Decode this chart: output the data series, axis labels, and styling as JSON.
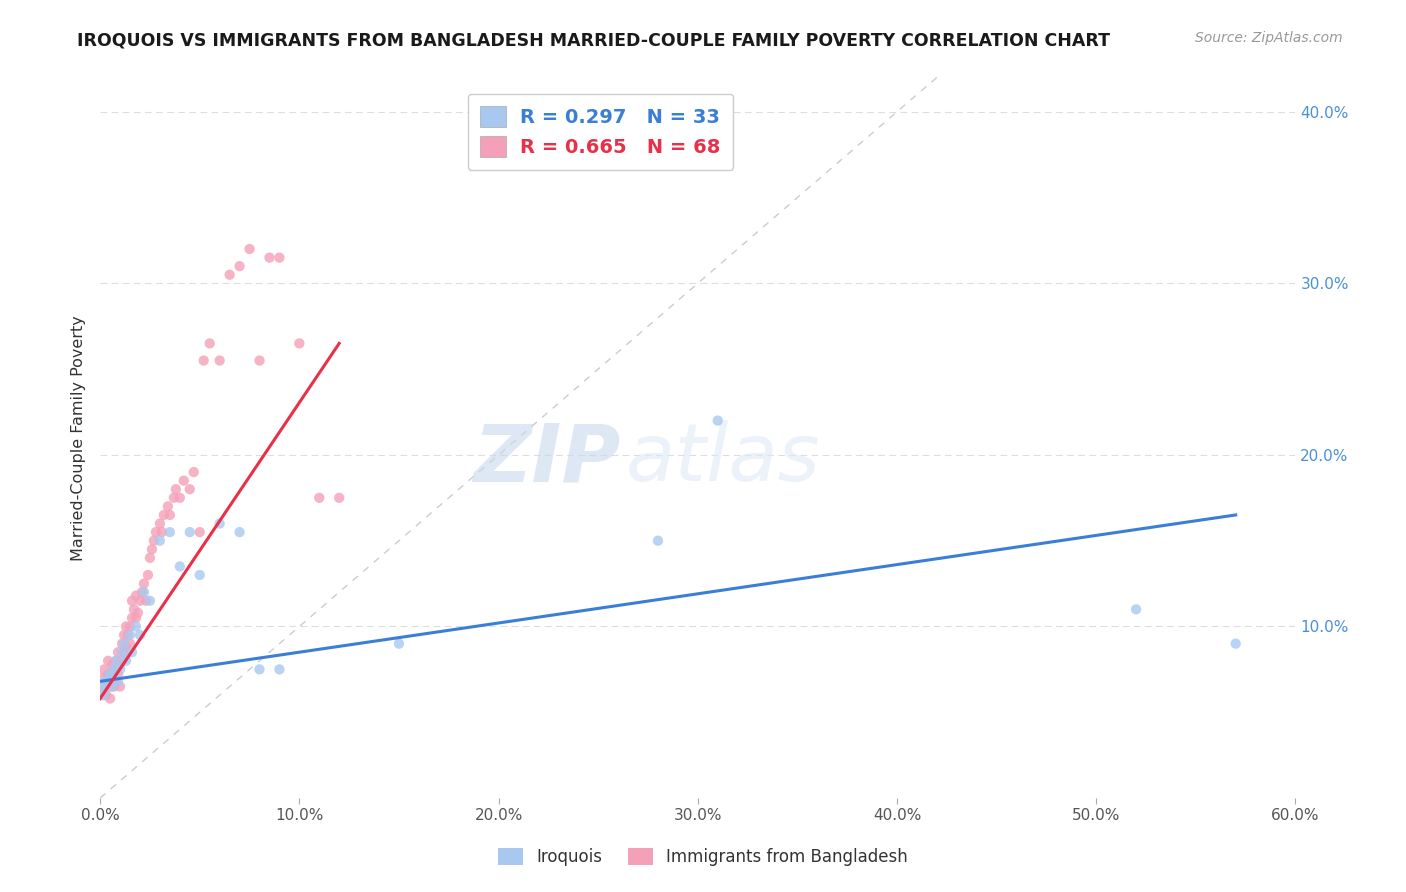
{
  "title": "IROQUOIS VS IMMIGRANTS FROM BANGLADESH MARRIED-COUPLE FAMILY POVERTY CORRELATION CHART",
  "source": "Source: ZipAtlas.com",
  "ylabel": "Married-Couple Family Poverty",
  "xlim": [
    0.0,
    0.6
  ],
  "ylim": [
    0.0,
    0.42
  ],
  "xticks": [
    0.0,
    0.1,
    0.2,
    0.3,
    0.4,
    0.5,
    0.6
  ],
  "xticklabels": [
    "0.0%",
    "10.0%",
    "20.0%",
    "30.0%",
    "40.0%",
    "50.0%",
    "60.0%"
  ],
  "yticks_right": [
    0.0,
    0.1,
    0.2,
    0.3,
    0.4
  ],
  "yticklabels_right": [
    "",
    "10.0%",
    "20.0%",
    "30.0%",
    "40.0%"
  ],
  "iroquois_color": "#a8c8f0",
  "bangladesh_color": "#f4a0b8",
  "iroquois_line_color": "#3a7fd5",
  "bangladesh_line_color": "#e8304a",
  "R_iroquois": 0.297,
  "N_iroquois": 33,
  "R_bangladesh": 0.665,
  "N_bangladesh": 68,
  "watermark_zip": "ZIP",
  "watermark_atlas": "atlas",
  "iroquois_x": [
    0.001,
    0.002,
    0.003,
    0.004,
    0.005,
    0.006,
    0.007,
    0.008,
    0.009,
    0.01,
    0.011,
    0.012,
    0.013,
    0.015,
    0.016,
    0.018,
    0.02,
    0.022,
    0.025,
    0.03,
    0.035,
    0.04,
    0.045,
    0.05,
    0.06,
    0.07,
    0.08,
    0.09,
    0.15,
    0.28,
    0.31,
    0.52,
    0.57
  ],
  "iroquois_y": [
    0.065,
    0.06,
    0.068,
    0.07,
    0.072,
    0.065,
    0.075,
    0.08,
    0.068,
    0.075,
    0.085,
    0.09,
    0.08,
    0.095,
    0.085,
    0.1,
    0.095,
    0.12,
    0.115,
    0.15,
    0.155,
    0.135,
    0.155,
    0.13,
    0.16,
    0.155,
    0.075,
    0.075,
    0.09,
    0.15,
    0.22,
    0.11,
    0.09
  ],
  "bangladesh_x": [
    0.001,
    0.001,
    0.002,
    0.002,
    0.003,
    0.003,
    0.004,
    0.004,
    0.005,
    0.005,
    0.006,
    0.006,
    0.007,
    0.007,
    0.008,
    0.008,
    0.009,
    0.009,
    0.01,
    0.01,
    0.011,
    0.011,
    0.012,
    0.012,
    0.013,
    0.013,
    0.014,
    0.015,
    0.015,
    0.016,
    0.016,
    0.017,
    0.018,
    0.018,
    0.019,
    0.02,
    0.021,
    0.022,
    0.023,
    0.024,
    0.025,
    0.026,
    0.027,
    0.028,
    0.03,
    0.031,
    0.032,
    0.034,
    0.035,
    0.037,
    0.038,
    0.04,
    0.042,
    0.045,
    0.047,
    0.05,
    0.052,
    0.055,
    0.06,
    0.065,
    0.07,
    0.075,
    0.08,
    0.085,
    0.09,
    0.1,
    0.11,
    0.12
  ],
  "bangladesh_y": [
    0.06,
    0.07,
    0.065,
    0.075,
    0.06,
    0.068,
    0.072,
    0.08,
    0.058,
    0.065,
    0.07,
    0.078,
    0.065,
    0.075,
    0.068,
    0.08,
    0.072,
    0.085,
    0.065,
    0.078,
    0.08,
    0.09,
    0.085,
    0.095,
    0.088,
    0.1,
    0.095,
    0.09,
    0.1,
    0.105,
    0.115,
    0.11,
    0.105,
    0.118,
    0.108,
    0.115,
    0.12,
    0.125,
    0.115,
    0.13,
    0.14,
    0.145,
    0.15,
    0.155,
    0.16,
    0.155,
    0.165,
    0.17,
    0.165,
    0.175,
    0.18,
    0.175,
    0.185,
    0.18,
    0.19,
    0.155,
    0.255,
    0.265,
    0.255,
    0.305,
    0.31,
    0.32,
    0.255,
    0.315,
    0.315,
    0.265,
    0.175,
    0.175
  ],
  "iro_line_x": [
    0.0,
    0.57
  ],
  "iro_line_y": [
    0.068,
    0.165
  ],
  "ban_line_x": [
    0.0,
    0.12
  ],
  "ban_line_y": [
    0.058,
    0.265
  ]
}
